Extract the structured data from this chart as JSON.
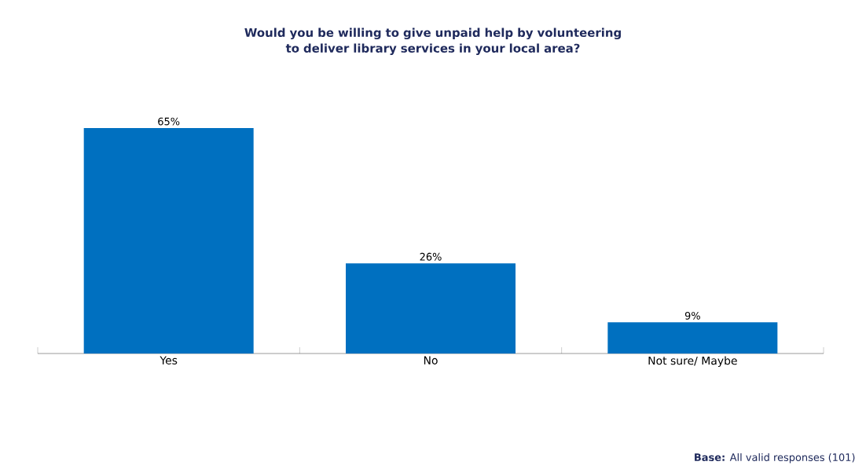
{
  "chart_data": {
    "type": "bar",
    "title": "Would you be willing to give unpaid help by volunteering to deliver library services in your local area?",
    "categories": [
      "Yes",
      "No",
      "Not sure/ Maybe"
    ],
    "values": [
      65,
      26,
      9
    ],
    "value_labels": [
      "65%",
      "26%",
      "9%"
    ],
    "color": "#0070c0",
    "annotations": [
      "**Base:** All  valid responses (101)"
    ]
  }
}
